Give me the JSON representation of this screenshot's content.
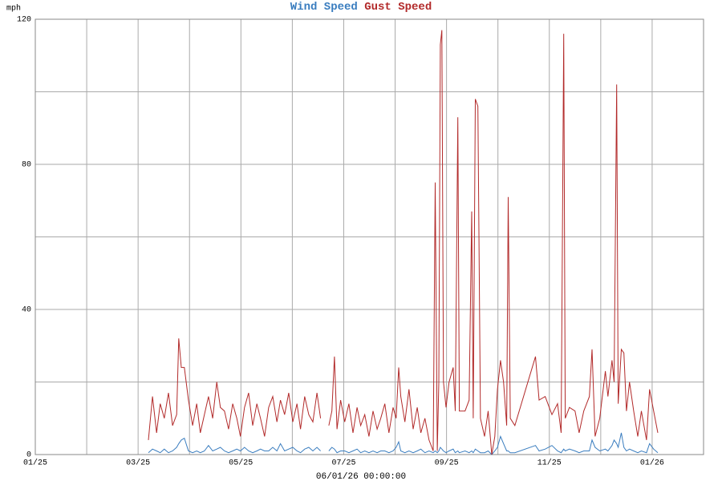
{
  "chart_data": {
    "type": "line",
    "title_separator": " ",
    "ylabel": "mph",
    "xlabel": "06/01/26 00:00:00",
    "xlim": [
      0,
      13
    ],
    "xticks": [
      {
        "value": 0,
        "label": "01/25"
      },
      {
        "value": 2,
        "label": "03/25"
      },
      {
        "value": 4,
        "label": "05/25"
      },
      {
        "value": 6,
        "label": "07/25"
      },
      {
        "value": 8,
        "label": "09/25"
      },
      {
        "value": 10,
        "label": "11/25"
      },
      {
        "value": 12,
        "label": "01/26"
      }
    ],
    "xminorticks": [
      1,
      3,
      5,
      7,
      9,
      11,
      13
    ],
    "ylim": [
      0,
      120
    ],
    "yticks": [
      0,
      40,
      80,
      120
    ],
    "yminorticks": [
      20,
      60,
      100
    ],
    "grid": true,
    "x": [
      2.2,
      2.28,
      2.36,
      2.43,
      2.51,
      2.59,
      2.67,
      2.75,
      2.79,
      2.84,
      2.9,
      2.98,
      3.06,
      3.14,
      3.21,
      3.29,
      3.37,
      3.45,
      3.53,
      3.6,
      3.68,
      3.76,
      3.84,
      3.92,
      3.99,
      4.07,
      4.15,
      4.23,
      4.31,
      4.38,
      4.46,
      4.54,
      4.62,
      4.7,
      4.77,
      4.85,
      4.93,
      5.01,
      5.09,
      5.16,
      5.24,
      5.32,
      5.4,
      5.48,
      5.55,
      5.63,
      5.71,
      5.77,
      5.82,
      5.87,
      5.94,
      6.02,
      6.1,
      6.18,
      6.26,
      6.33,
      6.41,
      6.49,
      6.57,
      6.65,
      6.72,
      6.8,
      6.88,
      6.96,
      7.02,
      7.07,
      7.11,
      7.19,
      7.27,
      7.35,
      7.43,
      7.5,
      7.58,
      7.66,
      7.74,
      7.78,
      7.82,
      7.85,
      7.88,
      7.91,
      7.94,
      7.99,
      8.05,
      8.13,
      8.17,
      8.22,
      8.25,
      8.36,
      8.44,
      8.49,
      8.52,
      8.56,
      8.61,
      8.66,
      8.74,
      8.81,
      8.88,
      8.94,
      8.99,
      9.05,
      9.11,
      9.17,
      9.2,
      9.24,
      9.33,
      9.73,
      9.8,
      9.92,
      10.05,
      10.16,
      10.23,
      10.28,
      10.31,
      10.39,
      10.5,
      10.58,
      10.67,
      10.78,
      10.83,
      10.89,
      10.98,
      11.09,
      11.14,
      11.22,
      11.26,
      11.31,
      11.34,
      11.4,
      11.45,
      11.5,
      11.56,
      11.64,
      11.72,
      11.79,
      11.89,
      11.95,
      12.03,
      12.11
    ],
    "series": [
      {
        "name": "Wind Speed",
        "color": "#3a7dbf",
        "values": [
          0.5,
          1.5,
          1,
          0.5,
          1.5,
          0.5,
          1,
          2,
          3,
          4,
          4.5,
          1,
          0.5,
          1,
          0.5,
          1,
          2.5,
          1,
          1.5,
          2,
          1,
          0.5,
          1,
          1.5,
          1,
          2,
          1,
          0.5,
          1,
          1.5,
          1,
          1,
          2,
          1,
          3,
          1,
          1.5,
          2,
          1,
          0.5,
          1.5,
          2,
          1,
          2,
          1,
          null,
          1,
          2,
          1.5,
          0.5,
          1,
          1,
          0.5,
          1,
          1.5,
          0.5,
          1,
          0.5,
          1,
          0.5,
          1,
          1,
          0.5,
          1,
          2,
          3.5,
          1,
          0.5,
          1,
          0.5,
          1,
          1.5,
          0.5,
          1,
          0.5,
          1,
          0.5,
          1,
          2,
          1.5,
          1,
          0.5,
          1,
          1.5,
          0.5,
          1,
          0.5,
          1,
          0.5,
          1,
          0.5,
          1.5,
          1,
          0.5,
          0.5,
          1,
          0,
          1,
          2,
          5,
          3,
          1,
          1,
          0.5,
          0.5,
          2.5,
          1,
          1.5,
          2.5,
          1,
          0.5,
          1.5,
          1,
          1.5,
          1,
          0.5,
          1,
          1,
          4,
          2,
          1,
          1.5,
          1,
          2.5,
          4,
          3,
          2,
          6,
          2,
          1,
          1.5,
          1,
          0.5,
          1,
          0.5,
          3,
          1.5,
          0.5
        ]
      },
      {
        "name": "Gust Speed",
        "color": "#b22a2a",
        "values": [
          4,
          16,
          6,
          14,
          10,
          17,
          8,
          11,
          32,
          24,
          24,
          15,
          8,
          14,
          6,
          11,
          16,
          10,
          20,
          13,
          12,
          7,
          14,
          10,
          5,
          13,
          17,
          8,
          14,
          10,
          5,
          13,
          16,
          9,
          15,
          11,
          17,
          9,
          14,
          7,
          16,
          11,
          9,
          17,
          10,
          null,
          8,
          12,
          27,
          7,
          15,
          9,
          14,
          6,
          13,
          8,
          11,
          5,
          12,
          7,
          10,
          14,
          6,
          13,
          10,
          24,
          16,
          9,
          18,
          7,
          13,
          6,
          10,
          4,
          1,
          75,
          1,
          20,
          113,
          117,
          20,
          13,
          20,
          24,
          12,
          93,
          12,
          12,
          15,
          67,
          10,
          98,
          96,
          10,
          5,
          12,
          0,
          5,
          18,
          26,
          20,
          8,
          71,
          10,
          8,
          27,
          15,
          16,
          11,
          14,
          6,
          116,
          10,
          13,
          12,
          6,
          12,
          16,
          29,
          5,
          10,
          23,
          16,
          26,
          20,
          102,
          14,
          29,
          28,
          12,
          20,
          12,
          5,
          12,
          4,
          18,
          12,
          6
        ]
      }
    ]
  }
}
